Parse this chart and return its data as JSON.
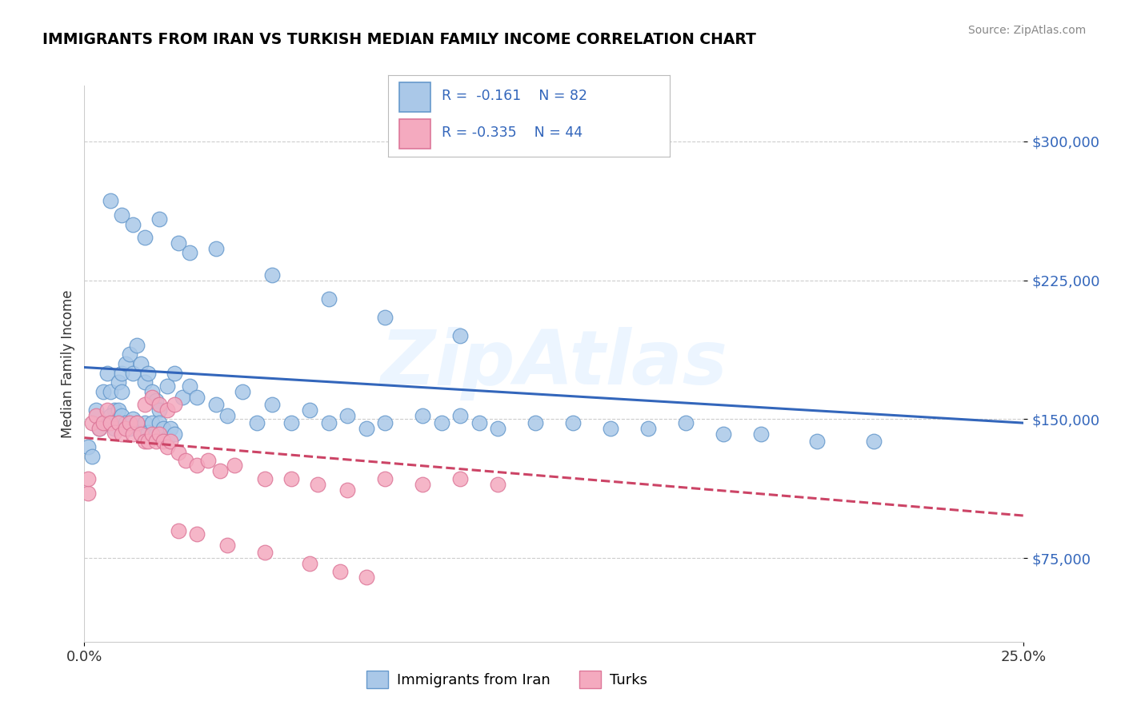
{
  "title": "IMMIGRANTS FROM IRAN VS TURKISH MEDIAN FAMILY INCOME CORRELATION CHART",
  "source": "Source: ZipAtlas.com",
  "ylabel": "Median Family Income",
  "x_min": 0.0,
  "x_max": 0.25,
  "y_min": 30000,
  "y_max": 330000,
  "yticks": [
    75000,
    150000,
    225000,
    300000
  ],
  "ytick_labels": [
    "$75,000",
    "$150,000",
    "$225,000",
    "$300,000"
  ],
  "xticks": [
    0.0,
    0.25
  ],
  "xtick_labels": [
    "0.0%",
    "25.0%"
  ],
  "blue_color": "#aac8e8",
  "pink_color": "#f4aabf",
  "blue_edge_color": "#6699cc",
  "pink_edge_color": "#dd7799",
  "blue_line_color": "#3366bb",
  "pink_line_color": "#cc4466",
  "watermark": "ZipAtlas",
  "blue_trend_x": [
    0.0,
    0.25
  ],
  "blue_trend_y": [
    178000,
    148000
  ],
  "pink_trend_x": [
    0.0,
    0.25
  ],
  "pink_trend_y": [
    140000,
    98000
  ],
  "blue_scatter_x": [
    0.003,
    0.004,
    0.005,
    0.006,
    0.007,
    0.008,
    0.009,
    0.01,
    0.01,
    0.011,
    0.012,
    0.013,
    0.014,
    0.015,
    0.016,
    0.017,
    0.018,
    0.019,
    0.02,
    0.022,
    0.024,
    0.026,
    0.028,
    0.006,
    0.007,
    0.008,
    0.009,
    0.01,
    0.011,
    0.012,
    0.013,
    0.014,
    0.015,
    0.016,
    0.017,
    0.018,
    0.019,
    0.02,
    0.021,
    0.022,
    0.023,
    0.024,
    0.03,
    0.035,
    0.038,
    0.042,
    0.046,
    0.05,
    0.055,
    0.06,
    0.065,
    0.07,
    0.075,
    0.08,
    0.09,
    0.095,
    0.1,
    0.105,
    0.11,
    0.12,
    0.13,
    0.14,
    0.15,
    0.16,
    0.17,
    0.18,
    0.195,
    0.21,
    0.007,
    0.01,
    0.013,
    0.016,
    0.02,
    0.025,
    0.028,
    0.035,
    0.05,
    0.065,
    0.08,
    0.1,
    0.001,
    0.002
  ],
  "blue_scatter_y": [
    155000,
    145000,
    165000,
    175000,
    165000,
    155000,
    170000,
    175000,
    165000,
    180000,
    185000,
    175000,
    190000,
    180000,
    170000,
    175000,
    165000,
    160000,
    155000,
    168000,
    175000,
    162000,
    168000,
    148000,
    152000,
    145000,
    155000,
    152000,
    148000,
    145000,
    150000,
    148000,
    143000,
    148000,
    143000,
    148000,
    142000,
    148000,
    145000,
    140000,
    145000,
    142000,
    162000,
    158000,
    152000,
    165000,
    148000,
    158000,
    148000,
    155000,
    148000,
    152000,
    145000,
    148000,
    152000,
    148000,
    152000,
    148000,
    145000,
    148000,
    148000,
    145000,
    145000,
    148000,
    142000,
    142000,
    138000,
    138000,
    268000,
    260000,
    255000,
    248000,
    258000,
    245000,
    240000,
    242000,
    228000,
    215000,
    205000,
    195000,
    135000,
    130000
  ],
  "pink_scatter_x": [
    0.002,
    0.003,
    0.004,
    0.005,
    0.006,
    0.007,
    0.008,
    0.009,
    0.01,
    0.011,
    0.012,
    0.013,
    0.014,
    0.015,
    0.016,
    0.017,
    0.018,
    0.019,
    0.02,
    0.021,
    0.022,
    0.023,
    0.025,
    0.027,
    0.03,
    0.033,
    0.036,
    0.016,
    0.018,
    0.02,
    0.022,
    0.024,
    0.04,
    0.048,
    0.055,
    0.062,
    0.07,
    0.08,
    0.09,
    0.1,
    0.11,
    0.025,
    0.03,
    0.038,
    0.048,
    0.06,
    0.068,
    0.075,
    0.001,
    0.001
  ],
  "pink_scatter_y": [
    148000,
    152000,
    145000,
    148000,
    155000,
    148000,
    143000,
    148000,
    142000,
    145000,
    148000,
    142000,
    148000,
    142000,
    138000,
    138000,
    142000,
    138000,
    142000,
    138000,
    135000,
    138000,
    132000,
    128000,
    125000,
    128000,
    122000,
    158000,
    162000,
    158000,
    155000,
    158000,
    125000,
    118000,
    118000,
    115000,
    112000,
    118000,
    115000,
    118000,
    115000,
    90000,
    88000,
    82000,
    78000,
    72000,
    68000,
    65000,
    110000,
    118000
  ]
}
